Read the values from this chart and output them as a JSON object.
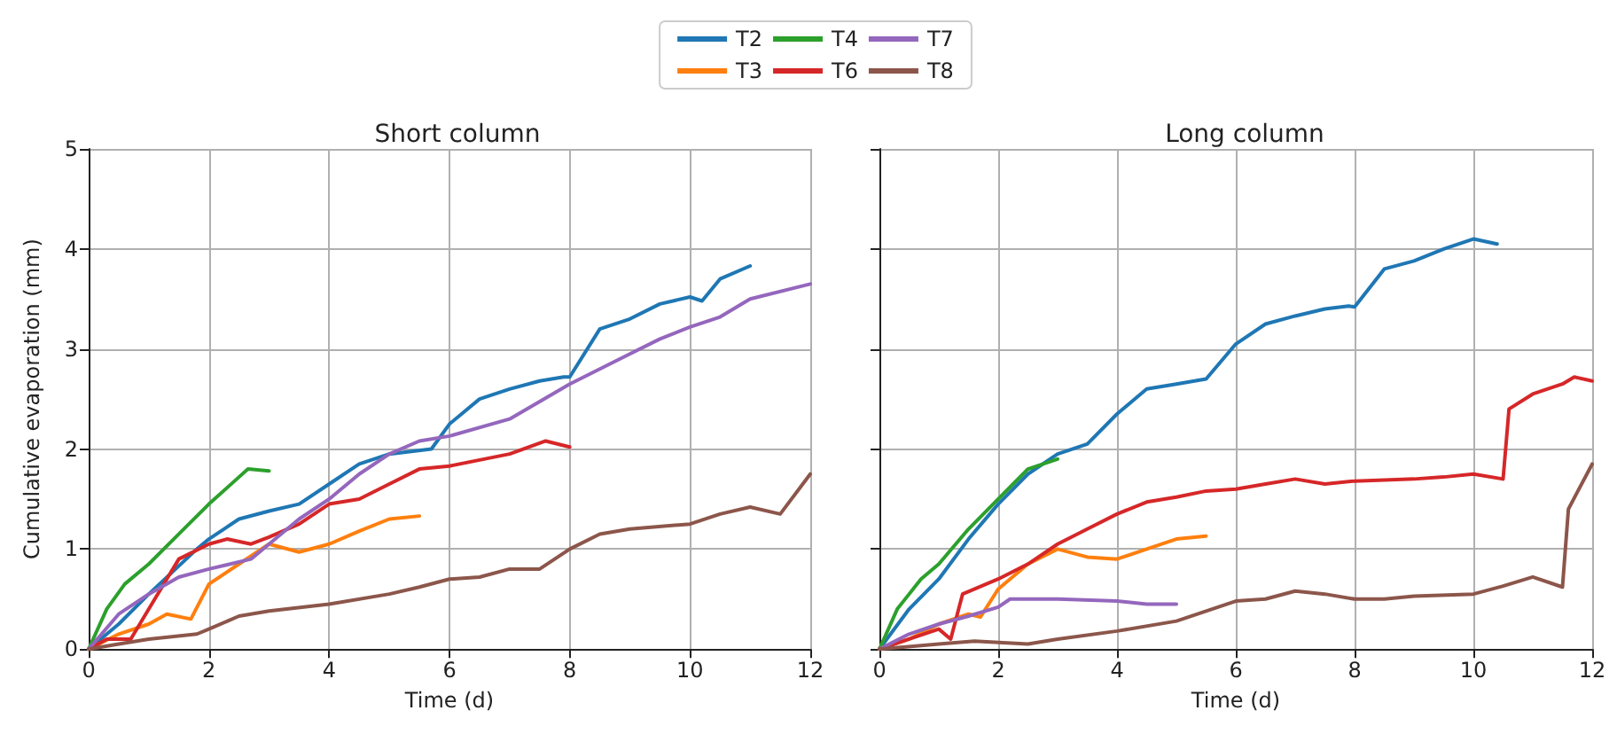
{
  "chart_data": [
    {
      "type": "line",
      "title": "Short column",
      "xlabel": "Time (d)",
      "ylabel": "Cumulative evaporation (mm)",
      "xlim": [
        0,
        12
      ],
      "xticks": [
        0,
        2,
        4,
        6,
        8,
        10,
        12
      ],
      "ylim": [
        0,
        5
      ],
      "yticks": [
        0,
        1,
        2,
        3,
        4,
        5
      ],
      "grid": true,
      "legend": "top",
      "marker": "none",
      "line_style": "solid",
      "series": [
        {
          "name": "T2",
          "color": "#1f77b4",
          "x": [
            0,
            0.5,
            1,
            1.8,
            2,
            2.5,
            3,
            3.5,
            4,
            4.5,
            5,
            5.7,
            6,
            6.5,
            7,
            7.5,
            7.9,
            8,
            8.5,
            9,
            9.5,
            10,
            10.2,
            10.5,
            11
          ],
          "values": [
            0,
            0.25,
            0.55,
            1.0,
            1.1,
            1.3,
            1.38,
            1.45,
            1.65,
            1.85,
            1.95,
            2.0,
            2.25,
            2.5,
            2.6,
            2.68,
            2.72,
            2.72,
            3.2,
            3.3,
            3.45,
            3.52,
            3.48,
            3.7,
            3.83
          ]
        },
        {
          "name": "T3",
          "color": "#ff7f0e",
          "x": [
            0,
            0.5,
            1,
            1.3,
            1.7,
            2,
            2.5,
            3,
            3.5,
            4,
            4.5,
            5,
            5.5
          ],
          "values": [
            0,
            0.15,
            0.25,
            0.35,
            0.3,
            0.65,
            0.85,
            1.05,
            0.97,
            1.05,
            1.18,
            1.3,
            1.33
          ]
        },
        {
          "name": "T4",
          "color": "#2ca02c",
          "x": [
            0,
            0.3,
            0.6,
            1,
            1.5,
            2,
            2.5,
            2.65,
            3
          ],
          "values": [
            0,
            0.4,
            0.65,
            0.85,
            1.15,
            1.45,
            1.72,
            1.8,
            1.78
          ]
        },
        {
          "name": "T6",
          "color": "#d62728",
          "x": [
            0,
            0.3,
            0.7,
            1,
            1.5,
            2,
            2.3,
            2.7,
            3,
            3.5,
            4,
            4.5,
            5,
            5.5,
            6,
            7,
            7.6,
            8
          ],
          "values": [
            0,
            0.1,
            0.1,
            0.4,
            0.9,
            1.05,
            1.1,
            1.05,
            1.12,
            1.25,
            1.45,
            1.5,
            1.65,
            1.8,
            1.83,
            1.95,
            2.08,
            2.02
          ]
        },
        {
          "name": "T7",
          "color": "#9467bd",
          "x": [
            0,
            0.5,
            1,
            1.5,
            2,
            2.7,
            3,
            3.5,
            4,
            4.5,
            5,
            5.5,
            6,
            7,
            8,
            8.5,
            9,
            9.5,
            10,
            10.5,
            11,
            12
          ],
          "values": [
            0,
            0.35,
            0.55,
            0.72,
            0.8,
            0.9,
            1.05,
            1.3,
            1.5,
            1.75,
            1.95,
            2.08,
            2.13,
            2.3,
            2.65,
            2.8,
            2.95,
            3.1,
            3.22,
            3.32,
            3.5,
            3.65
          ]
        },
        {
          "name": "T8",
          "color": "#8c564b",
          "x": [
            0,
            0.5,
            1,
            1.8,
            2,
            2.5,
            3,
            4,
            5,
            5.5,
            6,
            6.5,
            7,
            7.5,
            8,
            8.5,
            9,
            10,
            10.5,
            11,
            11.5,
            12
          ],
          "values": [
            0,
            0.05,
            0.1,
            0.15,
            0.2,
            0.33,
            0.38,
            0.45,
            0.55,
            0.62,
            0.7,
            0.72,
            0.8,
            0.8,
            1.0,
            1.15,
            1.2,
            1.25,
            1.35,
            1.42,
            1.35,
            1.75
          ]
        }
      ]
    },
    {
      "type": "line",
      "title": "Long column",
      "xlabel": "Time (d)",
      "xlim": [
        0,
        12
      ],
      "xticks": [
        0,
        2,
        4,
        6,
        8,
        10,
        12
      ],
      "ylim": [
        0,
        5
      ],
      "yticks": [
        0,
        1,
        2,
        3,
        4,
        5
      ],
      "grid": true,
      "tick_labels": "x",
      "marker": "none",
      "line_style": "solid",
      "series": [
        {
          "color": "#1f77b4",
          "x": [
            0,
            0.5,
            1,
            1.5,
            2,
            2.5,
            3,
            3.5,
            4,
            4.5,
            5,
            5.5,
            6,
            6.5,
            7,
            7.5,
            7.9,
            8,
            8.5,
            9,
            9.5,
            10,
            10.4
          ],
          "values": [
            0,
            0.4,
            0.7,
            1.1,
            1.45,
            1.75,
            1.95,
            2.05,
            2.35,
            2.6,
            2.65,
            2.7,
            3.05,
            3.25,
            3.33,
            3.4,
            3.43,
            3.42,
            3.8,
            3.88,
            4.0,
            4.1,
            4.05
          ]
        },
        {
          "color": "#ff7f0e",
          "x": [
            0,
            0.5,
            1,
            1.5,
            1.7,
            2,
            2.5,
            3,
            3.5,
            4,
            4.5,
            5,
            5.5
          ],
          "values": [
            0,
            0.1,
            0.25,
            0.35,
            0.32,
            0.6,
            0.85,
            1.0,
            0.92,
            0.9,
            1.0,
            1.1,
            1.13
          ]
        },
        {
          "color": "#2ca02c",
          "x": [
            0,
            0.3,
            0.7,
            1,
            1.5,
            2,
            2.5,
            3
          ],
          "values": [
            0,
            0.4,
            0.7,
            0.85,
            1.2,
            1.5,
            1.8,
            1.9
          ]
        },
        {
          "color": "#d62728",
          "x": [
            0,
            0.5,
            1,
            1.2,
            1.4,
            2,
            2.5,
            3,
            3.5,
            4,
            4.5,
            5,
            5.5,
            6,
            6.5,
            7,
            7.5,
            8,
            9,
            9.5,
            10,
            10.5,
            10.6,
            11,
            11.5,
            11.7,
            12
          ],
          "values": [
            0,
            0.1,
            0.2,
            0.1,
            0.55,
            0.7,
            0.85,
            1.05,
            1.2,
            1.35,
            1.47,
            1.52,
            1.58,
            1.6,
            1.65,
            1.7,
            1.65,
            1.68,
            1.7,
            1.72,
            1.75,
            1.7,
            2.4,
            2.55,
            2.65,
            2.72,
            2.68
          ]
        },
        {
          "color": "#9467bd",
          "x": [
            0,
            0.5,
            1,
            1.5,
            2,
            2.2,
            3,
            4,
            4.5,
            5
          ],
          "values": [
            0,
            0.15,
            0.25,
            0.33,
            0.42,
            0.5,
            0.5,
            0.48,
            0.45,
            0.45
          ]
        },
        {
          "color": "#8c564b",
          "x": [
            0,
            1,
            1.6,
            2.5,
            3,
            4,
            5,
            6,
            6.5,
            7,
            7.5,
            8,
            8.5,
            9,
            10,
            10.5,
            11,
            11.5,
            11.6,
            12
          ],
          "values": [
            0,
            0.05,
            0.08,
            0.05,
            0.1,
            0.18,
            0.28,
            0.48,
            0.5,
            0.58,
            0.55,
            0.5,
            0.5,
            0.53,
            0.55,
            0.63,
            0.72,
            0.62,
            1.4,
            1.85
          ]
        }
      ]
    }
  ]
}
